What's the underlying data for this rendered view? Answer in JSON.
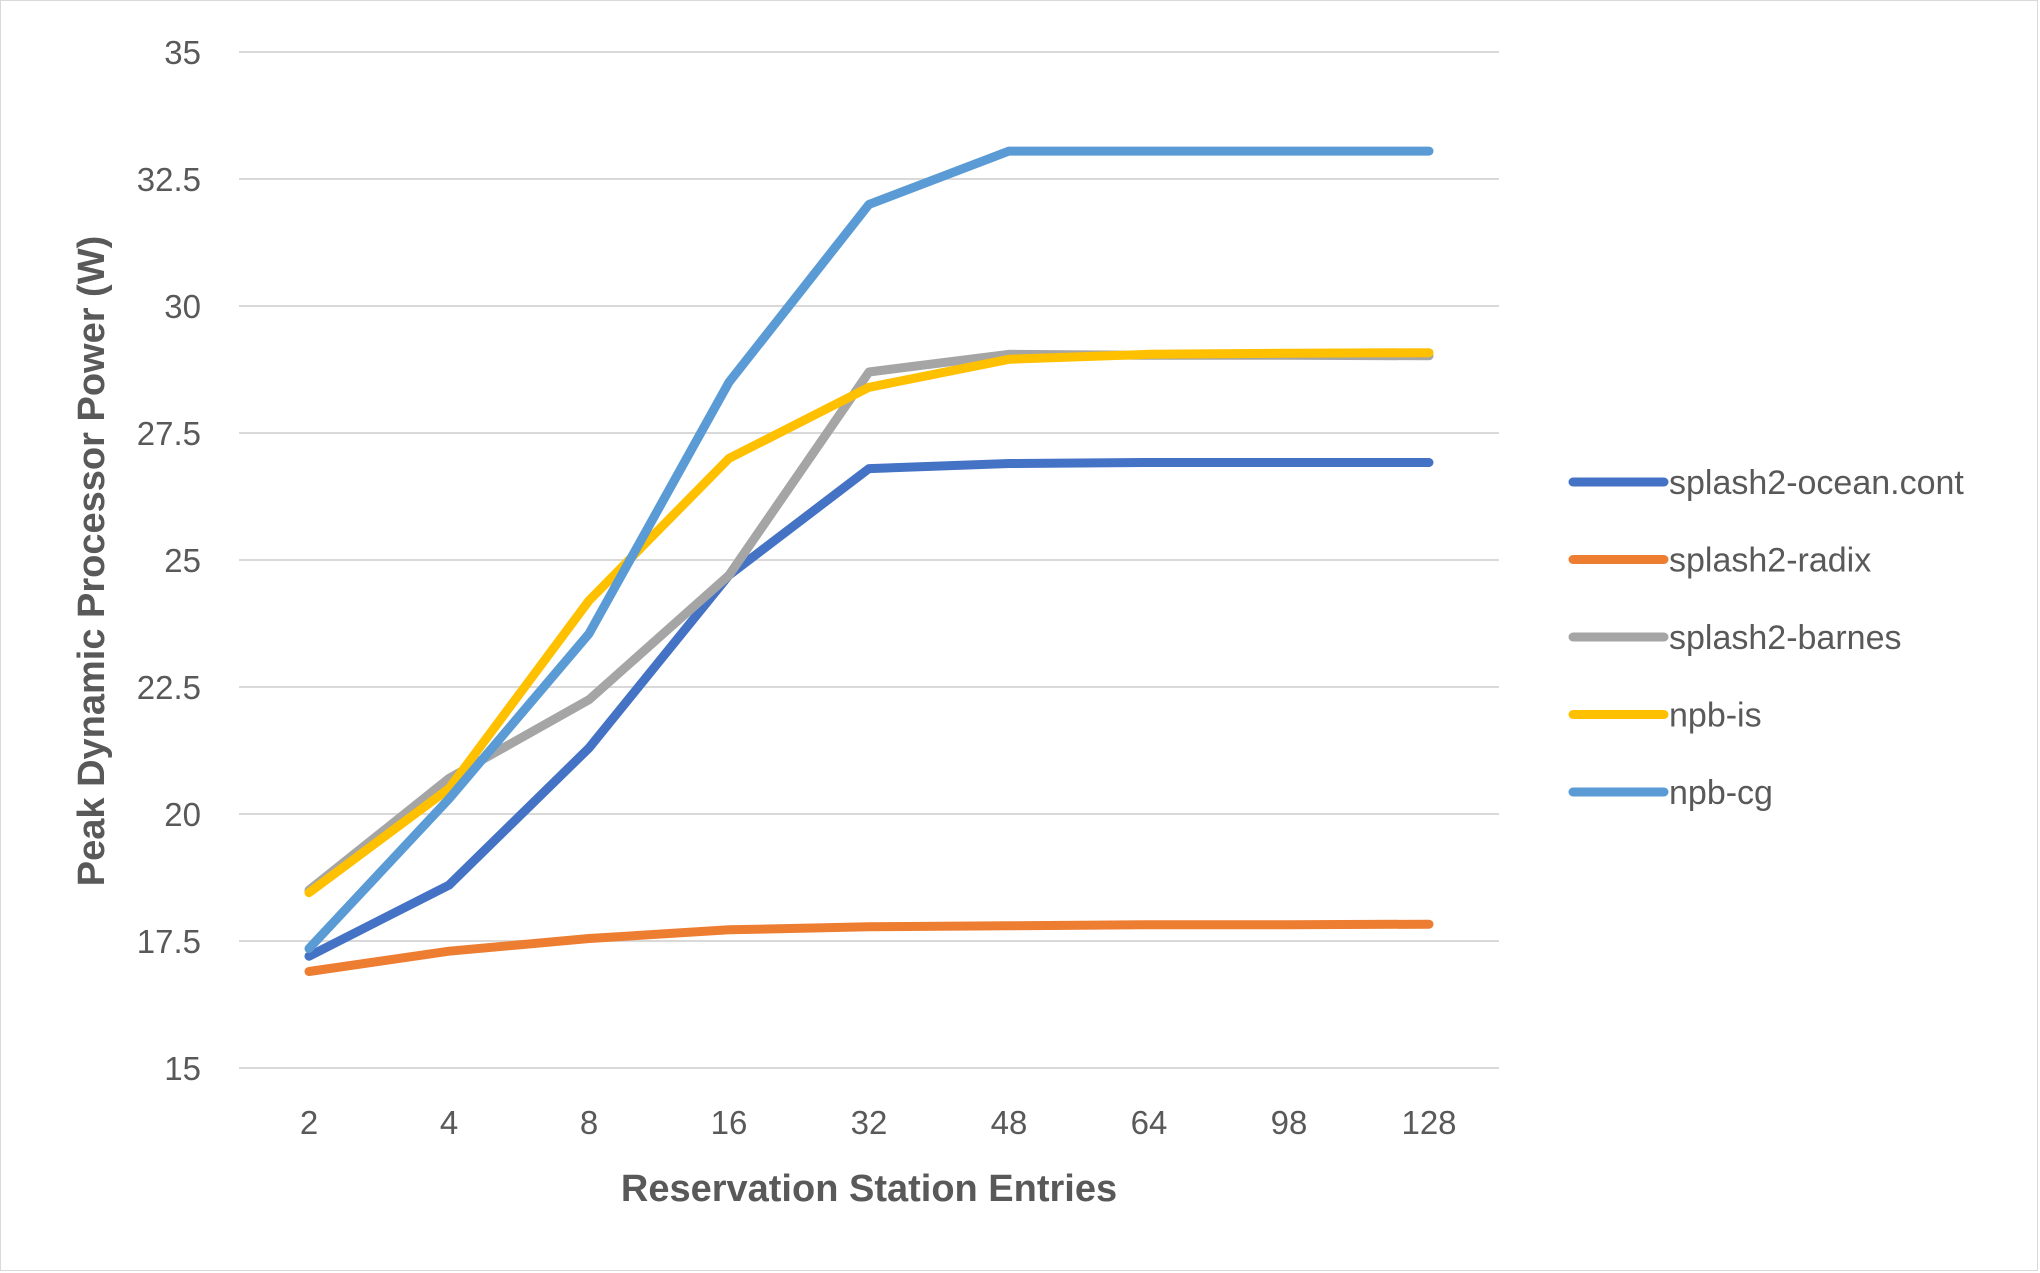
{
  "chart_data": {
    "type": "line",
    "title": "",
    "xlabel": "Reservation Station Entries",
    "ylabel": "Peak Dynamic Processor Power (W)",
    "categories": [
      "2",
      "4",
      "8",
      "16",
      "32",
      "48",
      "64",
      "98",
      "128"
    ],
    "ylim": [
      15,
      35
    ],
    "yticks": [
      "15",
      "17.5",
      "20",
      "22.5",
      "25",
      "27.5",
      "30",
      "32.5",
      "35"
    ],
    "grid": "horizontal",
    "legend_position": "right",
    "series": [
      {
        "name": "splash2-ocean.cont",
        "color": "#4472c4",
        "values": [
          17.2,
          18.6,
          21.3,
          24.7,
          26.8,
          26.9,
          26.92,
          26.92,
          26.92
        ]
      },
      {
        "name": "splash2-radix",
        "color": "#ed7d31",
        "values": [
          16.9,
          17.3,
          17.55,
          17.72,
          17.78,
          17.8,
          17.82,
          17.82,
          17.83
        ]
      },
      {
        "name": "splash2-barnes",
        "color": "#a5a5a5",
        "values": [
          18.5,
          20.7,
          22.25,
          24.7,
          28.7,
          29.05,
          29.03,
          29.03,
          29.02
        ]
      },
      {
        "name": "npb-is",
        "color": "#ffc000",
        "values": [
          18.45,
          20.5,
          24.2,
          27.0,
          28.4,
          28.95,
          29.05,
          29.07,
          29.08
        ]
      },
      {
        "name": "npb-cg",
        "color": "#5b9bd5",
        "values": [
          17.35,
          20.3,
          23.55,
          28.5,
          32.0,
          33.05,
          33.05,
          33.05,
          33.05
        ]
      }
    ]
  }
}
